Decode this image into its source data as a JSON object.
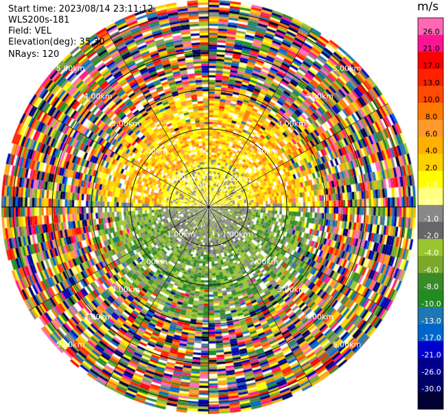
{
  "info": {
    "start_time": "Start time: 2023/08/14 23:11:12",
    "instrument": "WLS200s-181",
    "field": "Field: VEL",
    "elevation": "Elevation(deg): 35.30",
    "nrays": "NRays: 120"
  },
  "chart_data": {
    "type": "heatmap",
    "projection": "polar-ppi",
    "rays": 120,
    "range_rings_km": [
      1,
      2,
      3,
      4,
      5
    ],
    "range_unit": "km",
    "ring_labels": [
      "1.00km",
      "2.00km",
      "3.00km",
      "4.00km",
      "5.00km"
    ],
    "max_range_km": 5.3,
    "colorbar": {
      "title": "m/s",
      "ticks": [
        "26.0",
        "21.0",
        "17.0",
        "13.0",
        "10.0",
        "8.0",
        "6.0",
        "4.0",
        "2.0",
        "1.0",
        "0.0",
        "-1.0",
        "-2.0",
        "-4.0",
        "-6.0",
        "-8.0",
        "-10.0",
        "-13.0",
        "-17.0",
        "-21.0",
        "-26.0",
        "-30.0"
      ],
      "colors": [
        "#ff69b4",
        "#ff1493",
        "#ff0000",
        "#ff2200",
        "#ff4a00",
        "#ff7a00",
        "#ff9a2a",
        "#ffb000",
        "#ffd000",
        "#ffff00",
        "#ffff80",
        "#888888",
        "#666666",
        "#9ac430",
        "#7aa82a",
        "#3a8a2a",
        "#228b22",
        "#1f77b4",
        "#0066cc",
        "#0000cd",
        "#00008b",
        "#000066",
        "#000033"
      ]
    },
    "regions": [
      {
        "range_km": [
          0,
          1.2
        ],
        "sector": "north",
        "value": 2.0
      },
      {
        "range_km": [
          0,
          1.2
        ],
        "sector": "south",
        "value": -1.5
      },
      {
        "range_km": [
          1.2,
          2.6
        ],
        "sector": "north",
        "value": 4.0
      },
      {
        "range_km": [
          1.2,
          2.6
        ],
        "sector": "south",
        "value": -4.0
      },
      {
        "range_km": [
          2.6,
          5.3
        ],
        "sector": "all",
        "value": "noise"
      }
    ]
  }
}
